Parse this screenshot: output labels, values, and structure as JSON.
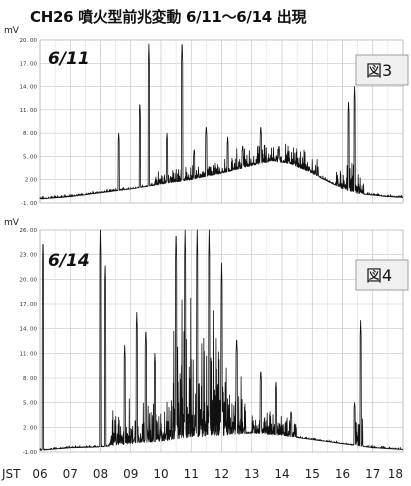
{
  "title": "CH26 噴火型前兆変動 6/11〜6/14 出現",
  "colors": {
    "trace": "#111111",
    "grid": "#c8c8c8",
    "box_fill": "#f0f0f0",
    "box_border": "#888888"
  },
  "chart_data": [
    {
      "type": "line",
      "date_label": "6/11",
      "figure_label": "図3",
      "unit": "mV",
      "ylim": [
        -1,
        20
      ],
      "yticks": [
        20,
        17,
        14,
        11,
        8,
        5,
        2,
        -1
      ],
      "ytick_labels": [
        "20. 00",
        "17. 00",
        "14. 00",
        "11. 00",
        "8. 00",
        "5. 00",
        "2.00",
        "-1. 00"
      ],
      "xlim": [
        6,
        18
      ],
      "baseline": [
        [
          6,
          -0.5
        ],
        [
          7,
          -0.2
        ],
        [
          8,
          0.3
        ],
        [
          9,
          0.8
        ],
        [
          10,
          1.4
        ],
        [
          11,
          2.0
        ],
        [
          12,
          2.8
        ],
        [
          13,
          3.8
        ],
        [
          13.7,
          4.4
        ],
        [
          14.3,
          4.0
        ],
        [
          15,
          2.8
        ],
        [
          15.5,
          1.8
        ],
        [
          16,
          0.8
        ],
        [
          16.5,
          0.2
        ],
        [
          17,
          0.0
        ],
        [
          17.5,
          -0.2
        ],
        [
          18,
          -0.3
        ]
      ],
      "spikes": [
        [
          8.6,
          8.0
        ],
        [
          9.3,
          12.0
        ],
        [
          9.6,
          19.5
        ],
        [
          10.2,
          8.0
        ],
        [
          10.7,
          20.0
        ],
        [
          11.1,
          6.0
        ],
        [
          11.5,
          9.0
        ],
        [
          12.2,
          7.5
        ],
        [
          12.7,
          6.5
        ],
        [
          13.3,
          9.0
        ],
        [
          13.9,
          6.5
        ],
        [
          16.2,
          12.0
        ],
        [
          16.4,
          14.0
        ]
      ],
      "noise": [
        [
          6,
          18,
          0.4
        ],
        [
          9.8,
          11.2,
          2.2
        ],
        [
          11.2,
          12.5,
          2.0
        ],
        [
          12.5,
          15.2,
          3.0
        ],
        [
          15.8,
          16.7,
          4.0
        ]
      ]
    },
    {
      "type": "line",
      "date_label": "6/14",
      "figure_label": "図4",
      "unit": "mV",
      "ylim": [
        -1,
        26
      ],
      "yticks": [
        26,
        23,
        20,
        17,
        14,
        11,
        8,
        5,
        2,
        -1
      ],
      "ytick_labels": [
        "26. 00",
        "23. 00",
        "20. 00",
        "17. 00",
        "14. 00",
        "11. 00",
        "8. 00",
        "5. 00",
        "2. 00",
        "-1.00"
      ],
      "xlim": [
        6,
        18
      ],
      "x_tick_labels": [
        "JST",
        "06",
        "07",
        "08",
        "09",
        "10",
        "11",
        "12",
        "13",
        "14",
        "15",
        "16",
        "17",
        "18"
      ],
      "baseline": [
        [
          6,
          -0.8
        ],
        [
          7,
          -0.5
        ],
        [
          8,
          -0.4
        ],
        [
          9,
          0.0
        ],
        [
          10,
          0.3
        ],
        [
          11,
          0.8
        ],
        [
          12,
          1.0
        ],
        [
          13,
          1.3
        ],
        [
          14,
          1.0
        ],
        [
          15,
          0.5
        ],
        [
          16,
          0.0
        ],
        [
          17,
          -0.5
        ],
        [
          18,
          -0.7
        ]
      ],
      "spikes": [
        [
          6.1,
          25.0
        ],
        [
          8.0,
          26.0
        ],
        [
          8.15,
          22.0
        ],
        [
          8.8,
          12.0
        ],
        [
          9.2,
          16.0
        ],
        [
          9.5,
          14.0
        ],
        [
          9.8,
          11.0
        ],
        [
          10.5,
          26.0
        ],
        [
          10.8,
          26.0
        ],
        [
          11.2,
          26.0
        ],
        [
          11.6,
          26.0
        ],
        [
          12.0,
          22.0
        ],
        [
          12.5,
          13.0
        ],
        [
          13.3,
          9.0
        ],
        [
          13.8,
          7.5
        ],
        [
          14.3,
          4.0
        ],
        [
          16.4,
          5.0
        ],
        [
          16.6,
          15.0
        ]
      ],
      "noise": [
        [
          6,
          18,
          0.3
        ],
        [
          8.3,
          10.3,
          6.0
        ],
        [
          10.3,
          12.2,
          18.0
        ],
        [
          12.2,
          12.8,
          8.0
        ],
        [
          13.0,
          14.5,
          3.5
        ],
        [
          16.4,
          16.7,
          6.0
        ]
      ]
    }
  ]
}
